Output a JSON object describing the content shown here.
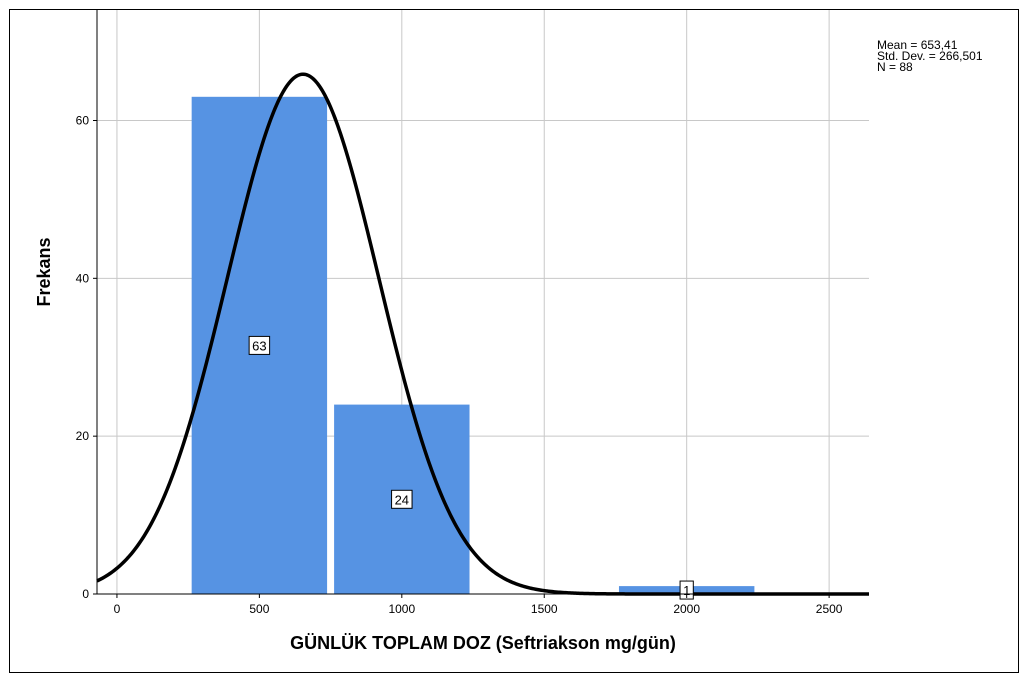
{
  "chart_data": {
    "type": "bar",
    "subtype": "histogram-with-normal-curve",
    "xlabel": "GÜNLÜK TOPLAM DOZ (Seftriakson mg/gün)",
    "ylabel": "Frekans",
    "xlim": [
      -70,
      2640
    ],
    "ylim": [
      0,
      74
    ],
    "xticks": [
      0,
      500,
      1000,
      1500,
      2000,
      2500
    ],
    "xtick_labels": [
      "0",
      "500",
      "1000",
      "1500",
      "2000",
      "2500"
    ],
    "yticks": [
      0,
      20,
      40,
      60
    ],
    "ytick_labels": [
      "0",
      "20",
      "40",
      "60"
    ],
    "grid": true,
    "bins": [
      {
        "start": 250,
        "end": 750,
        "value": 63,
        "label": "63"
      },
      {
        "start": 750,
        "end": 1250,
        "value": 24,
        "label": "24"
      },
      {
        "start": 1750,
        "end": 2250,
        "value": 1,
        "label": "1"
      }
    ],
    "bar_color": "#5693e3",
    "curve_color": "#000000",
    "normal_curve": {
      "mean": 653.41,
      "std": 266.501,
      "n": 88,
      "bin_width": 500
    },
    "stats": [
      "Mean = 653,41",
      "Std. Dev. = 266,501",
      "N = 88"
    ]
  }
}
